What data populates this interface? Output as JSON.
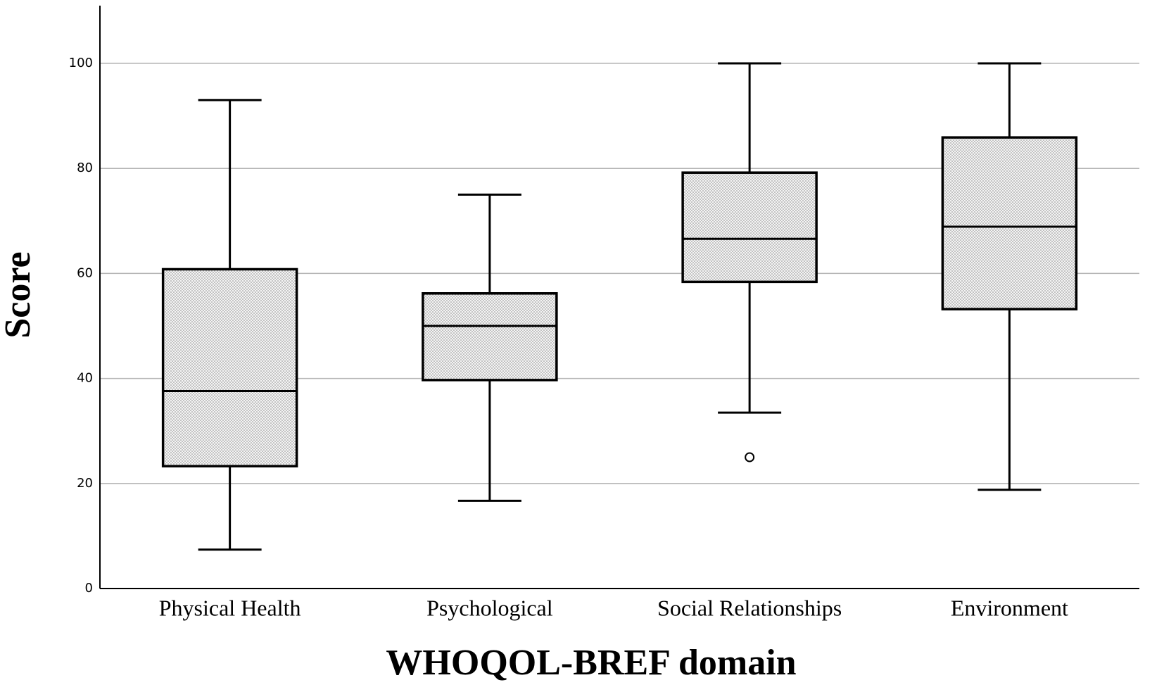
{
  "chart_data": {
    "type": "boxplot",
    "x_label": "WHOQOL-BREF domain",
    "y_label": "Score",
    "categories": [
      "Physical Health",
      "Psychological",
      "Social Relationships",
      "Environment"
    ],
    "boxes": [
      {
        "whisker_low": 7.4,
        "q1": 23.3,
        "median": 37.6,
        "q3": 60.8,
        "whisker_high": 93,
        "outliers": []
      },
      {
        "whisker_low": 16.7,
        "q1": 39.7,
        "median": 50,
        "q3": 56.2,
        "whisker_high": 75,
        "outliers": []
      },
      {
        "whisker_low": 33.5,
        "q1": 58.4,
        "median": 66.6,
        "q3": 79.2,
        "whisker_high": 100,
        "outliers": [
          25
        ]
      },
      {
        "whisker_low": 18.8,
        "q1": 53.2,
        "median": 68.9,
        "q3": 85.9,
        "whisker_high": 100,
        "outliers": []
      }
    ],
    "ylim": [
      0,
      111
    ],
    "yticks": [
      0,
      20,
      40,
      60,
      80,
      100
    ],
    "grid": true,
    "color": "#000000"
  }
}
